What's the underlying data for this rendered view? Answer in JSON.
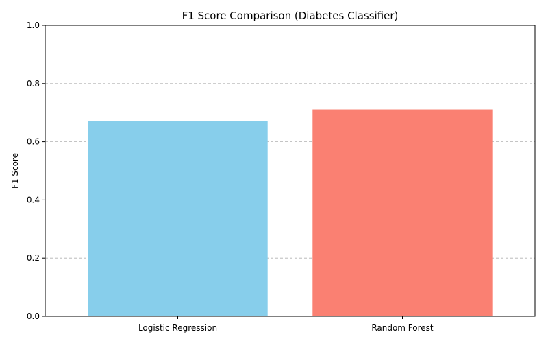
{
  "chart_data": {
    "type": "bar",
    "title": "F1 Score Comparison (Diabetes Classifier)",
    "xlabel": "",
    "ylabel": "F1 Score",
    "categories": [
      "Logistic Regression",
      "Random Forest"
    ],
    "values": [
      0.672,
      0.711
    ],
    "colors": [
      "#87ceeb",
      "#fa8072"
    ],
    "ylim": [
      0,
      1.0
    ],
    "yticks": [
      "0.0",
      "0.2",
      "0.4",
      "0.6",
      "0.8",
      "1.0"
    ],
    "grid": "y-dashed"
  }
}
